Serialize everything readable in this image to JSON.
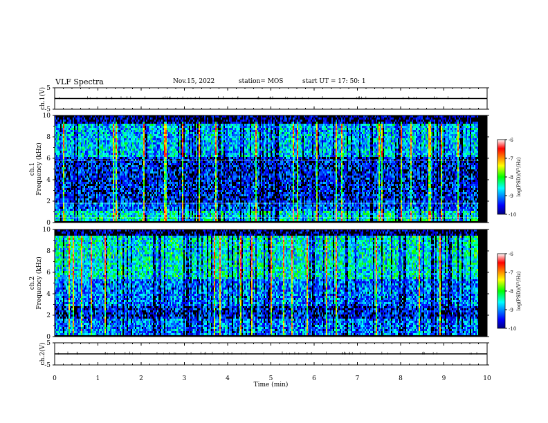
{
  "header": {
    "title": "VLF Spectra",
    "date": "Nov.15, 2022",
    "station": "station= MOS",
    "start": "start  UT  =   17: 50: 1"
  },
  "chart_data": [
    {
      "id": "ch1-voltage",
      "type": "line",
      "ylabel": "ch.1(V)",
      "ylim": [
        -5,
        5
      ],
      "yticks": [
        5,
        -5
      ],
      "x": [
        0,
        10
      ],
      "values": [
        0,
        0
      ],
      "description_note": ""
    },
    {
      "id": "ch1-spectrogram",
      "type": "heatmap",
      "ylabel": "ch.1\nFrequency (kHz)",
      "ylabel_lines": [
        "ch.1",
        "Frequency (kHz)"
      ],
      "ylim": [
        0,
        10
      ],
      "yticks": [
        0,
        2,
        4,
        6,
        8,
        10
      ],
      "xlim": [
        0,
        10
      ],
      "colorbar": {
        "label": "log(PSD)(V²/Hz)",
        "range": [
          -10,
          -6
        ],
        "ticks": [
          -6,
          -7,
          -8,
          -9,
          -10
        ]
      }
    },
    {
      "id": "ch2-spectrogram",
      "type": "heatmap",
      "ylabel": "ch.2\nFrequency (kHz)",
      "ylabel_lines": [
        "ch.2",
        "Frequency (kHz)"
      ],
      "ylim": [
        0,
        10
      ],
      "yticks": [
        0,
        2,
        4,
        6,
        8,
        10
      ],
      "xlim": [
        0,
        10
      ],
      "colorbar": {
        "label": "log(PSD)(V²/Hz)",
        "range": [
          -10,
          -6
        ],
        "ticks": [
          -6,
          -7,
          -8,
          -9,
          -10
        ]
      }
    },
    {
      "id": "ch2-voltage",
      "type": "line",
      "ylabel": "ch.2(V)",
      "ylim": [
        -5,
        5
      ],
      "yticks": [
        5,
        -5
      ],
      "x": [
        0,
        10
      ],
      "values": [
        0,
        0
      ]
    }
  ],
  "xaxis": {
    "label": "Time  (min)",
    "ticks": [
      0,
      1,
      2,
      3,
      4,
      5,
      6,
      7,
      8,
      9,
      10
    ],
    "xlim": [
      0,
      10
    ]
  }
}
